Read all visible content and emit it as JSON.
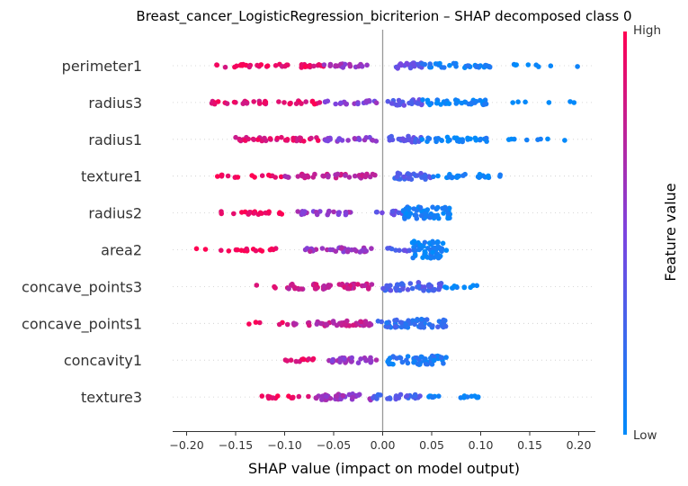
{
  "chart_data": {
    "type": "scatter",
    "title": "Breast_cancer_LogisticRegression_bicriterion – SHAP decomposed class 0",
    "xlabel": "SHAP value (impact on model output)",
    "xlim": [
      -0.22,
      0.22
    ],
    "xticks": [
      -0.2,
      -0.15,
      -0.1,
      -0.05,
      0.0,
      0.05,
      0.1,
      0.15,
      0.2
    ],
    "xtick_labels": [
      "−0.20",
      "−0.15",
      "−0.10",
      "−0.05",
      "0.00",
      "0.05",
      "0.10",
      "0.15",
      "0.20"
    ],
    "features": [
      "perimeter1",
      "radius3",
      "radius1",
      "texture1",
      "radius2",
      "area2",
      "concave_points3",
      "concave_points1",
      "concavity1",
      "texture3"
    ],
    "colorbar": {
      "label": "Feature value",
      "high": "High",
      "low": "Low",
      "high_color": "#ff0052",
      "mid_color": "#7c44e0",
      "low_color": "#008bfb"
    },
    "series": [
      {
        "feature": "perimeter1",
        "ranges": [
          {
            "lo": -0.17,
            "hi": -0.06,
            "n": 40,
            "c": 0.92
          },
          {
            "lo": -0.06,
            "hi": -0.005,
            "n": 20,
            "c": 0.6
          },
          {
            "lo": 0.005,
            "hi": 0.04,
            "n": 20,
            "c": 0.4
          },
          {
            "lo": 0.04,
            "hi": 0.11,
            "n": 35,
            "c": 0.08
          },
          {
            "lo": 0.13,
            "hi": 0.2,
            "n": 8,
            "c": 0.0
          }
        ]
      },
      {
        "feature": "radius3",
        "ranges": [
          {
            "lo": -0.175,
            "hi": -0.06,
            "n": 38,
            "c": 0.9
          },
          {
            "lo": -0.06,
            "hi": -0.005,
            "n": 22,
            "c": 0.55
          },
          {
            "lo": 0.005,
            "hi": 0.04,
            "n": 20,
            "c": 0.35
          },
          {
            "lo": 0.04,
            "hi": 0.11,
            "n": 38,
            "c": 0.05
          },
          {
            "lo": 0.125,
            "hi": 0.2,
            "n": 6,
            "c": 0.0
          }
        ]
      },
      {
        "feature": "radius1",
        "ranges": [
          {
            "lo": -0.15,
            "hi": -0.06,
            "n": 36,
            "c": 0.88
          },
          {
            "lo": -0.06,
            "hi": -0.005,
            "n": 22,
            "c": 0.55
          },
          {
            "lo": 0.005,
            "hi": 0.04,
            "n": 22,
            "c": 0.35
          },
          {
            "lo": 0.04,
            "hi": 0.11,
            "n": 36,
            "c": 0.06
          },
          {
            "lo": 0.125,
            "hi": 0.2,
            "n": 8,
            "c": 0.0
          }
        ]
      },
      {
        "feature": "texture1",
        "ranges": [
          {
            "lo": -0.17,
            "hi": -0.1,
            "n": 16,
            "c": 0.98
          },
          {
            "lo": -0.1,
            "hi": -0.005,
            "n": 40,
            "c": 0.75
          },
          {
            "lo": 0.01,
            "hi": 0.05,
            "n": 26,
            "c": 0.3
          },
          {
            "lo": 0.05,
            "hi": 0.12,
            "n": 26,
            "c": 0.05
          }
        ]
      },
      {
        "feature": "radius2",
        "ranges": [
          {
            "lo": -0.165,
            "hi": -0.09,
            "n": 22,
            "c": 0.95
          },
          {
            "lo": -0.09,
            "hi": -0.03,
            "n": 24,
            "c": 0.6
          },
          {
            "lo": -0.01,
            "hi": 0.02,
            "n": 12,
            "c": 0.4
          },
          {
            "lo": 0.02,
            "hi": 0.07,
            "n": 60,
            "c": 0.08
          }
        ]
      },
      {
        "feature": "area2",
        "ranges": [
          {
            "lo": -0.195,
            "hi": -0.095,
            "n": 18,
            "c": 0.97
          },
          {
            "lo": -0.08,
            "hi": -0.01,
            "n": 32,
            "c": 0.62
          },
          {
            "lo": 0.005,
            "hi": 0.03,
            "n": 10,
            "c": 0.35
          },
          {
            "lo": 0.03,
            "hi": 0.065,
            "n": 60,
            "c": 0.05
          }
        ]
      },
      {
        "feature": "concave_points3",
        "ranges": [
          {
            "lo": -0.135,
            "hi": -0.1,
            "n": 3,
            "c": 0.95
          },
          {
            "lo": -0.1,
            "hi": -0.01,
            "n": 50,
            "c": 0.78
          },
          {
            "lo": 0.0,
            "hi": 0.06,
            "n": 50,
            "c": 0.3
          },
          {
            "lo": 0.06,
            "hi": 0.1,
            "n": 12,
            "c": 0.03
          }
        ]
      },
      {
        "feature": "concave_points1",
        "ranges": [
          {
            "lo": -0.14,
            "hi": -0.1,
            "n": 5,
            "c": 0.95
          },
          {
            "lo": -0.1,
            "hi": -0.01,
            "n": 46,
            "c": 0.75
          },
          {
            "lo": -0.005,
            "hi": 0.065,
            "n": 60,
            "c": 0.2
          }
        ]
      },
      {
        "feature": "concavity1",
        "ranges": [
          {
            "lo": -0.1,
            "hi": -0.06,
            "n": 12,
            "c": 0.92
          },
          {
            "lo": -0.06,
            "hi": -0.005,
            "n": 30,
            "c": 0.6
          },
          {
            "lo": 0.005,
            "hi": 0.065,
            "n": 56,
            "c": 0.12
          }
        ]
      },
      {
        "feature": "texture3",
        "ranges": [
          {
            "lo": -0.125,
            "hi": -0.07,
            "n": 14,
            "c": 0.95
          },
          {
            "lo": -0.07,
            "hi": -0.005,
            "n": 40,
            "c": 0.6
          },
          {
            "lo": -0.01,
            "hi": 0.04,
            "n": 26,
            "c": 0.3
          },
          {
            "lo": 0.04,
            "hi": 0.1,
            "n": 16,
            "c": 0.02
          }
        ]
      }
    ]
  }
}
